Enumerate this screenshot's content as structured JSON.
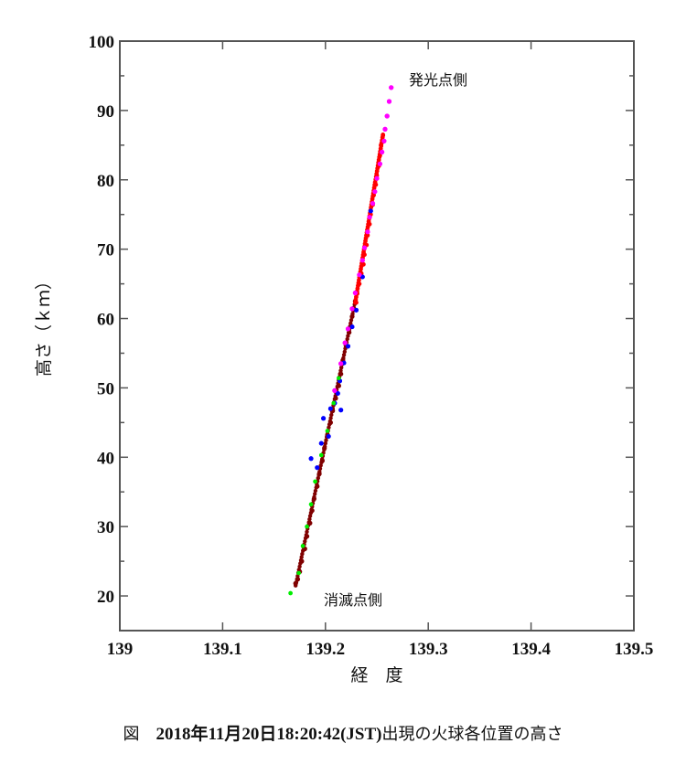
{
  "chart_data": {
    "type": "scatter",
    "title": "",
    "xlabel": "経　度",
    "ylabel": "高さ（ｋｍ）",
    "xlim": [
      139.0,
      139.5
    ],
    "ylim": [
      15,
      100
    ],
    "x_ticks": [
      "139",
      "139.1",
      "139.2",
      "139.3",
      "139.4",
      "139.5"
    ],
    "y_ticks": [
      "20",
      "30",
      "40",
      "50",
      "60",
      "70",
      "80",
      "90",
      "100"
    ],
    "grid": false,
    "legend": null,
    "annotations": [
      {
        "text": "発光点側",
        "x": 139.28,
        "y": 94.5
      },
      {
        "text": "消滅点側",
        "x": 139.19,
        "y": 19.7
      }
    ],
    "series": [
      {
        "name": "magenta",
        "color": "#ff00ff",
        "points": [
          [
            139.264,
            93.3
          ],
          [
            139.262,
            91.3
          ],
          [
            139.26,
            89.2
          ],
          [
            139.258,
            87.3
          ],
          [
            139.257,
            85.6
          ],
          [
            139.255,
            84.0
          ],
          [
            139.253,
            82.3
          ],
          [
            139.25,
            80.2
          ],
          [
            139.248,
            78.3
          ],
          [
            139.246,
            76.6
          ],
          [
            139.243,
            74.6
          ],
          [
            139.241,
            72.5
          ],
          [
            139.238,
            70.2
          ],
          [
            139.236,
            68.4
          ],
          [
            139.233,
            66.3
          ],
          [
            139.229,
            63.7
          ],
          [
            139.226,
            61.4
          ],
          [
            139.222,
            58.5
          ],
          [
            139.219,
            56.5
          ],
          [
            139.215,
            53.5
          ],
          [
            139.209,
            49.6
          ]
        ]
      },
      {
        "name": "red",
        "color": "#ff0000",
        "points": [
          [
            139.256,
            86.4
          ],
          [
            139.254,
            85.0
          ],
          [
            139.253,
            83.5
          ],
          [
            139.252,
            82.0
          ],
          [
            139.25,
            80.6
          ],
          [
            139.249,
            79.3
          ],
          [
            139.247,
            77.8
          ],
          [
            139.246,
            76.4
          ],
          [
            139.244,
            75.0
          ],
          [
            139.243,
            73.6
          ],
          [
            139.241,
            72.0
          ],
          [
            139.24,
            70.6
          ],
          [
            139.238,
            69.2
          ],
          [
            139.237,
            67.8
          ],
          [
            139.235,
            66.5
          ],
          [
            139.233,
            65.0
          ],
          [
            139.231,
            63.6
          ],
          [
            139.23,
            62.3
          ]
        ]
      },
      {
        "name": "blue",
        "color": "#0000ff",
        "points": [
          [
            139.244,
            75.5
          ],
          [
            139.236,
            66.0
          ],
          [
            139.23,
            61.2
          ],
          [
            139.226,
            58.8
          ],
          [
            139.222,
            56.0
          ],
          [
            139.218,
            53.6
          ],
          [
            139.214,
            51.0
          ],
          [
            139.212,
            49.2
          ],
          [
            139.215,
            46.8
          ],
          [
            139.209,
            47.8
          ],
          [
            139.205,
            47.0
          ],
          [
            139.198,
            45.6
          ],
          [
            139.203,
            43.0
          ],
          [
            139.196,
            42.0
          ],
          [
            139.186,
            39.8
          ],
          [
            139.192,
            38.5
          ]
        ]
      },
      {
        "name": "dark-red",
        "color": "#800000",
        "points": [
          [
            139.229,
            62.5
          ],
          [
            139.226,
            60.3
          ],
          [
            139.223,
            58.0
          ],
          [
            139.22,
            56.1
          ],
          [
            139.217,
            54.0
          ],
          [
            139.215,
            52.0
          ],
          [
            139.213,
            50.3
          ],
          [
            139.21,
            48.5
          ],
          [
            139.207,
            46.7
          ],
          [
            139.205,
            45.0
          ],
          [
            139.202,
            43.2
          ],
          [
            139.199,
            41.3
          ],
          [
            139.197,
            39.5
          ],
          [
            139.194,
            37.6
          ],
          [
            139.192,
            35.8
          ],
          [
            139.189,
            34.0
          ],
          [
            139.187,
            32.3
          ],
          [
            139.185,
            30.5
          ],
          [
            139.182,
            28.6
          ],
          [
            139.18,
            26.8
          ],
          [
            139.177,
            25.0
          ],
          [
            139.175,
            23.5
          ],
          [
            139.173,
            22.4
          ],
          [
            139.171,
            21.8
          ]
        ]
      },
      {
        "name": "green",
        "color": "#00ee00",
        "points": [
          [
            139.166,
            20.4
          ],
          [
            139.174,
            23.3
          ],
          [
            139.178,
            27.2
          ],
          [
            139.182,
            30.0
          ],
          [
            139.186,
            33.2
          ],
          [
            139.19,
            36.5
          ],
          [
            139.196,
            40.3
          ],
          [
            139.202,
            43.8
          ],
          [
            139.208,
            47.8
          ],
          [
            139.213,
            51.4
          ]
        ]
      }
    ]
  },
  "caption": {
    "figure_label": "図",
    "datetime": "2018年11月20日18:20:42(JST)",
    "text": "出現の火球各位置の高さ"
  }
}
